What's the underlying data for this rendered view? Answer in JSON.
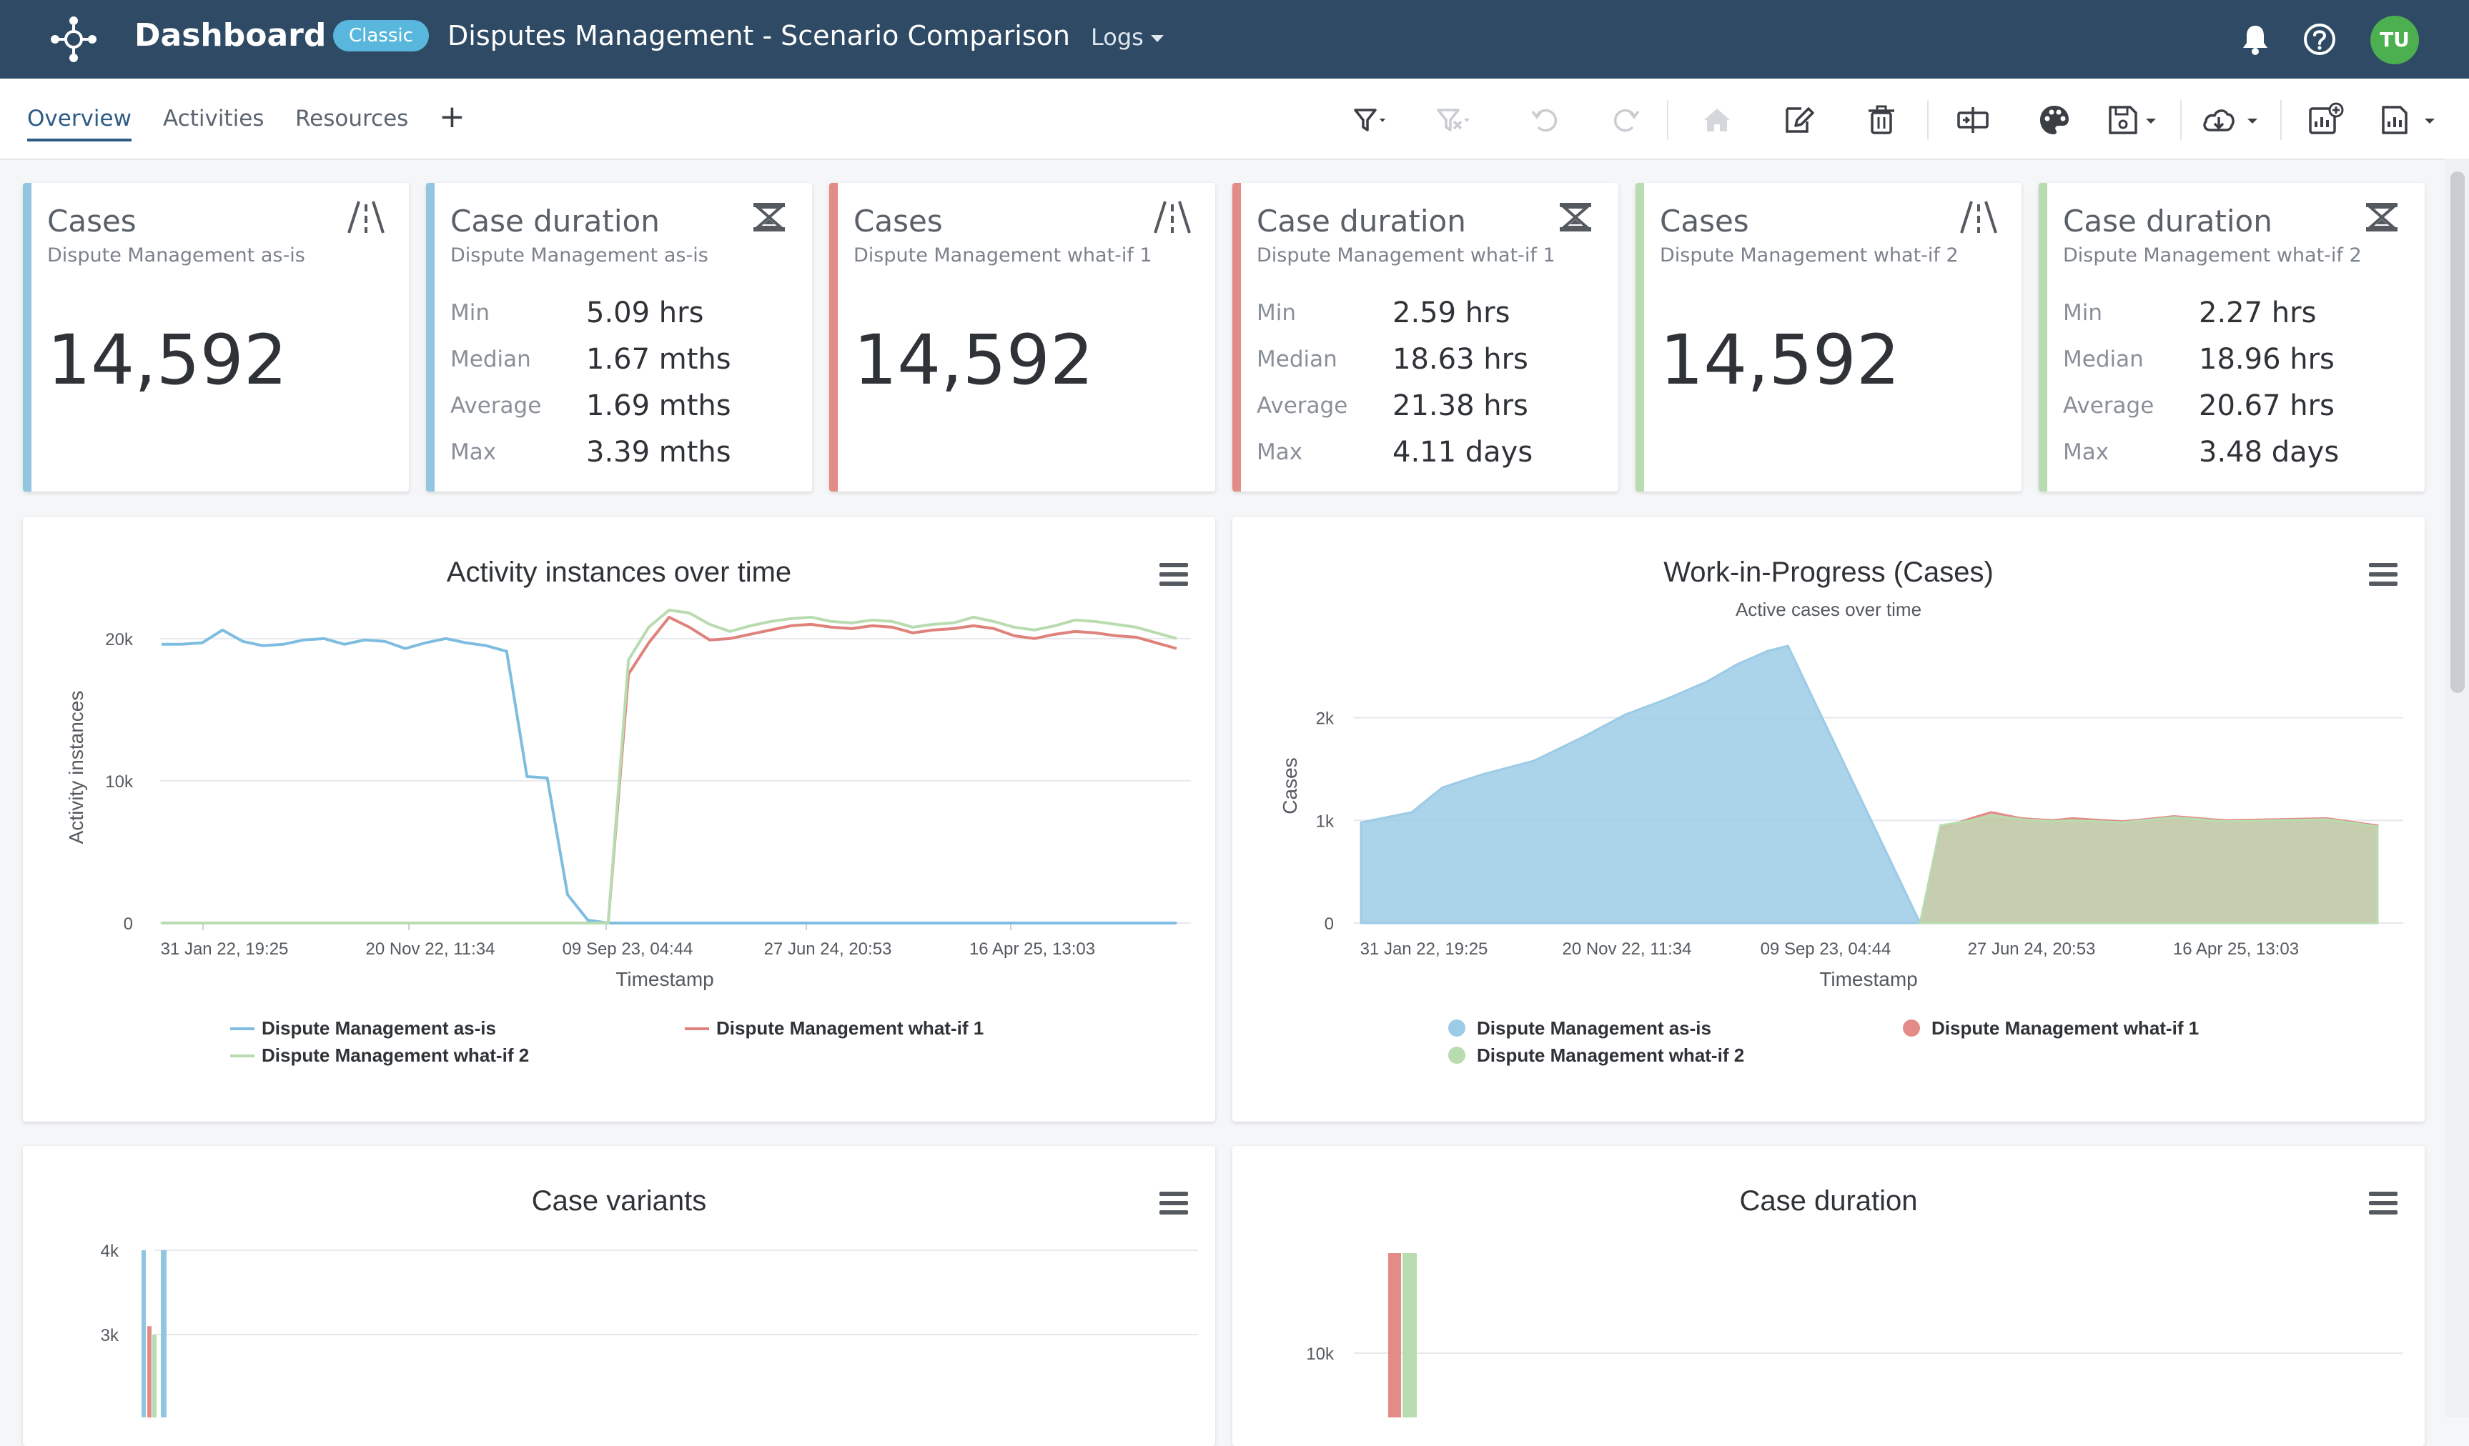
{
  "header": {
    "app_title": "Dashboard",
    "badge": "Classic",
    "page_title": "Disputes Management - Scenario Comparison",
    "logs_label": "Logs",
    "avatar_initials": "TU",
    "colors": {
      "bar": "#2e4a64",
      "badge": "#59b6dc",
      "avatar": "#4caf50"
    }
  },
  "tabs": [
    {
      "label": "Overview",
      "active": true
    },
    {
      "label": "Activities",
      "active": false
    },
    {
      "label": "Resources",
      "active": false
    }
  ],
  "add_tab_label": "+",
  "toolbar_icons": [
    "filter-icon",
    "clear-filter-icon",
    "undo-icon",
    "redo-icon",
    "home-icon",
    "edit-icon",
    "delete-icon",
    "compare-icon",
    "palette-icon",
    "save-icon",
    "cloud-download-icon",
    "add-chart-icon",
    "export-icon"
  ],
  "kpis": [
    {
      "title": "Cases",
      "subtitle": "Dispute Management as-is",
      "value": "14,592",
      "color": "#92c5e0",
      "icon": "road-icon"
    },
    {
      "title": "Case duration",
      "subtitle": "Dispute Management as-is",
      "color": "#92c5e0",
      "icon": "hourglass-icon",
      "stats": [
        {
          "label": "Min",
          "value": "5.09 hrs"
        },
        {
          "label": "Median",
          "value": "1.67 mths"
        },
        {
          "label": "Average",
          "value": "1.69 mths"
        },
        {
          "label": "Max",
          "value": "3.39 mths"
        }
      ]
    },
    {
      "title": "Cases",
      "subtitle": "Dispute Management what-if 1",
      "value": "14,592",
      "color": "#e38b86",
      "icon": "road-icon"
    },
    {
      "title": "Case duration",
      "subtitle": "Dispute Management what-if 1",
      "color": "#e38b86",
      "icon": "hourglass-icon",
      "stats": [
        {
          "label": "Min",
          "value": "2.59 hrs"
        },
        {
          "label": "Median",
          "value": "18.63 hrs"
        },
        {
          "label": "Average",
          "value": "21.38 hrs"
        },
        {
          "label": "Max",
          "value": "4.11 days"
        }
      ]
    },
    {
      "title": "Cases",
      "subtitle": "Dispute Management what-if 2",
      "value": "14,592",
      "color": "#b8dcb0",
      "icon": "road-icon"
    },
    {
      "title": "Case duration",
      "subtitle": "Dispute Management what-if 2",
      "color": "#b8dcb0",
      "icon": "hourglass-icon",
      "stats": [
        {
          "label": "Min",
          "value": "2.27 hrs"
        },
        {
          "label": "Median",
          "value": "18.96 hrs"
        },
        {
          "label": "Average",
          "value": "20.67 hrs"
        },
        {
          "label": "Max",
          "value": "3.48 days"
        }
      ]
    }
  ],
  "chart_data": [
    {
      "type": "line",
      "title": "Activity instances over time",
      "xlabel": "Timestamp",
      "ylabel": "Activity instances",
      "ylim": [
        0,
        22000
      ],
      "yticks": [
        {
          "v": 0,
          "label": "0"
        },
        {
          "v": 10000,
          "label": "10k"
        },
        {
          "v": 20000,
          "label": "20k"
        }
      ],
      "xticks": [
        "31 Jan 22, 19:25",
        "20 Nov 22, 11:34",
        "09 Sep 23, 04:44",
        "27 Jun 24, 20:53",
        "16 Apr 25, 13:03"
      ],
      "x_positions": [
        0,
        2,
        4,
        6,
        8,
        10,
        12,
        14,
        16,
        18,
        20,
        22,
        24,
        26,
        28,
        30,
        32,
        34,
        36,
        38,
        40,
        42,
        44,
        46,
        48,
        50,
        52,
        54,
        56,
        58,
        60,
        62,
        64,
        66,
        68,
        70,
        72,
        74,
        76,
        78,
        80,
        82,
        84,
        86,
        88,
        90,
        92,
        94,
        96,
        98,
        100
      ],
      "series": [
        {
          "name": "Dispute Management as-is",
          "color": "#7fbde0",
          "values": [
            19600,
            19600,
            19700,
            20600,
            19800,
            19500,
            19600,
            19900,
            20000,
            19600,
            19900,
            19800,
            19300,
            19700,
            20000,
            19700,
            19500,
            19100,
            10300,
            10200,
            2000,
            200,
            0,
            0,
            0,
            0,
            0,
            0,
            0,
            0,
            0,
            0,
            0,
            0,
            0,
            0,
            0,
            0,
            0,
            0,
            0,
            0,
            0,
            0,
            0,
            0,
            0,
            0,
            0,
            0,
            0
          ]
        },
        {
          "name": "Dispute Management what-if 1",
          "color": "#e0827c",
          "values": [
            0,
            0,
            0,
            0,
            0,
            0,
            0,
            0,
            0,
            0,
            0,
            0,
            0,
            0,
            0,
            0,
            0,
            0,
            0,
            0,
            0,
            0,
            0,
            17500,
            19700,
            21500,
            20800,
            19900,
            20000,
            20300,
            20600,
            20900,
            21000,
            20800,
            20700,
            20900,
            20800,
            20400,
            20600,
            20700,
            20900,
            20700,
            20200,
            20000,
            20300,
            20500,
            20400,
            20200,
            20100,
            19700,
            19300
          ]
        },
        {
          "name": "Dispute Management what-if 2",
          "color": "#b8dcb0",
          "values": [
            0,
            0,
            0,
            0,
            0,
            0,
            0,
            0,
            0,
            0,
            0,
            0,
            0,
            0,
            0,
            0,
            0,
            0,
            0,
            0,
            0,
            0,
            0,
            18500,
            20800,
            22000,
            21800,
            21000,
            20500,
            20900,
            21200,
            21400,
            21500,
            21200,
            21100,
            21300,
            21200,
            20800,
            21000,
            21100,
            21500,
            21200,
            20800,
            20600,
            20900,
            21300,
            21200,
            21000,
            20800,
            20400,
            20000
          ]
        }
      ]
    },
    {
      "type": "area",
      "title": "Work-in-Progress (Cases)",
      "subtitle": "Active cases over time",
      "xlabel": "Timestamp",
      "ylabel": "Cases",
      "ylim": [
        0,
        2700
      ],
      "yticks": [
        {
          "v": 0,
          "label": "0"
        },
        {
          "v": 1000,
          "label": "1k"
        },
        {
          "v": 2000,
          "label": "2k"
        }
      ],
      "xticks": [
        "31 Jan 22, 19:25",
        "20 Nov 22, 11:34",
        "09 Sep 23, 04:44",
        "27 Jun 24, 20:53",
        "16 Apr 25, 13:03"
      ],
      "series": [
        {
          "name": "Dispute Management as-is",
          "color": "#9ccbe6",
          "x": [
            0,
            5,
            8,
            12,
            17,
            22,
            26,
            30,
            34,
            37,
            40,
            42,
            55
          ],
          "values": [
            980,
            1080,
            1320,
            1450,
            1580,
            1820,
            2030,
            2180,
            2350,
            2520,
            2650,
            2700,
            0
          ]
        },
        {
          "name": "Dispute Management what-if 1",
          "color": "#e38b86",
          "x": [
            55,
            57,
            60,
            62,
            65,
            68,
            70,
            75,
            80,
            85,
            90,
            95,
            100
          ],
          "values": [
            0,
            920,
            1020,
            1080,
            1020,
            1000,
            1020,
            990,
            1040,
            1000,
            1010,
            1020,
            950
          ]
        },
        {
          "name": "Dispute Management what-if 2",
          "color": "#b8dcb0",
          "x": [
            55,
            57,
            60,
            62,
            65,
            68,
            70,
            75,
            80,
            85,
            90,
            95,
            100
          ],
          "values": [
            0,
            950,
            1000,
            1050,
            1010,
            990,
            1000,
            980,
            1030,
            990,
            1000,
            1010,
            940
          ]
        }
      ]
    },
    {
      "type": "bar",
      "title": "Case variants",
      "ylim": [
        2000,
        4000
      ],
      "yticks": [
        {
          "v": 3000,
          "label": "3k"
        },
        {
          "v": 4000,
          "label": "4k"
        }
      ],
      "series": [
        {
          "name": "Dispute Management as-is",
          "color": "#92c5e0",
          "values": [
            4000,
            4000
          ]
        },
        {
          "name": "Dispute Management what-if 1",
          "color": "#e38b86",
          "values": [
            3100
          ]
        },
        {
          "name": "Dispute Management what-if 2",
          "color": "#b8dcb0",
          "values": [
            3000
          ]
        }
      ]
    },
    {
      "type": "bar",
      "title": "Case duration",
      "yticks": [
        {
          "v": 10000,
          "label": "10k"
        }
      ],
      "series": [
        {
          "name": "Dispute Management what-if 1",
          "color": "#e38b86",
          "values": [
            12000
          ]
        },
        {
          "name": "Dispute Management what-if 2",
          "color": "#b8dcb0",
          "values": [
            12000
          ]
        }
      ]
    }
  ]
}
